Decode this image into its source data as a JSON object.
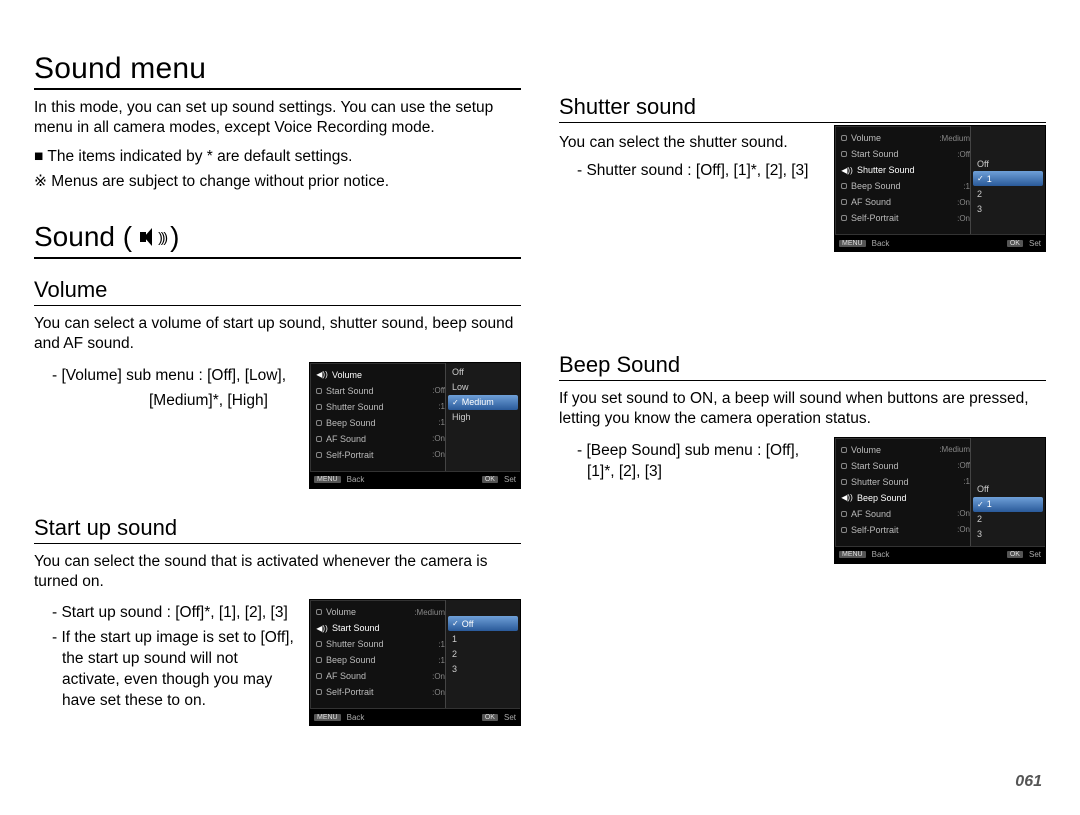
{
  "page_number": "061",
  "title": "Sound menu",
  "intro": "In this mode, you can set up sound settings. You can use the setup menu in all camera modes, except Voice Recording mode.",
  "note_default": "■ The items indicated by * are default settings.",
  "note_change": "※ Menus are subject to change without prior notice.",
  "sound_heading": "Sound (",
  "sound_heading_close": ")",
  "menu_labels": {
    "volume": "Volume",
    "start_sound": "Start Sound",
    "shutter_sound": "Shutter Sound",
    "beep_sound": "Beep Sound",
    "af_sound": "AF Sound",
    "self_portrait": "Self-Portrait",
    "back": "Back",
    "set": "Set",
    "menu_btn": "MENU",
    "ok_btn": "OK"
  },
  "menu_side_values": {
    "medium": "Medium",
    "off": "Off",
    "one": "1",
    "on": "On"
  },
  "volume": {
    "heading": "Volume",
    "text": "You can select a volume of start up sound,  shutter sound, beep sound and AF sound.",
    "sub1": "- [Volume] sub menu : [Off], [Low],",
    "sub2": "[Medium]*, [High]",
    "options": [
      "Off",
      "Low",
      "Medium",
      "High"
    ],
    "highlight": 2
  },
  "startup": {
    "heading": "Start up sound",
    "text": "You can select the sound that is activated whenever the camera is turned on.",
    "sub1": "- Start up sound : [Off]*, [1], [2], [3]",
    "sub2": "- If the start up image is set to [Off], the start up sound will not activate, even though you may have set these to on.",
    "options": [
      "Off",
      "1",
      "2",
      "3"
    ],
    "highlight": 0
  },
  "shutter": {
    "heading": "Shutter sound",
    "text": "You can select the shutter sound.",
    "sub1": "- Shutter sound : [Off], [1]*, [2], [3]",
    "options": [
      "Off",
      "1",
      "2",
      "3"
    ],
    "highlight": 1
  },
  "beep": {
    "heading": "Beep Sound",
    "text": "If you set sound to ON, a beep will sound when buttons are pressed, letting you know the camera operation status.",
    "sub1": "- [Beep Sound] sub menu : [Off], [1]*, [2], [3]",
    "options": [
      "Off",
      "1",
      "2",
      "3"
    ],
    "highlight": 1
  }
}
